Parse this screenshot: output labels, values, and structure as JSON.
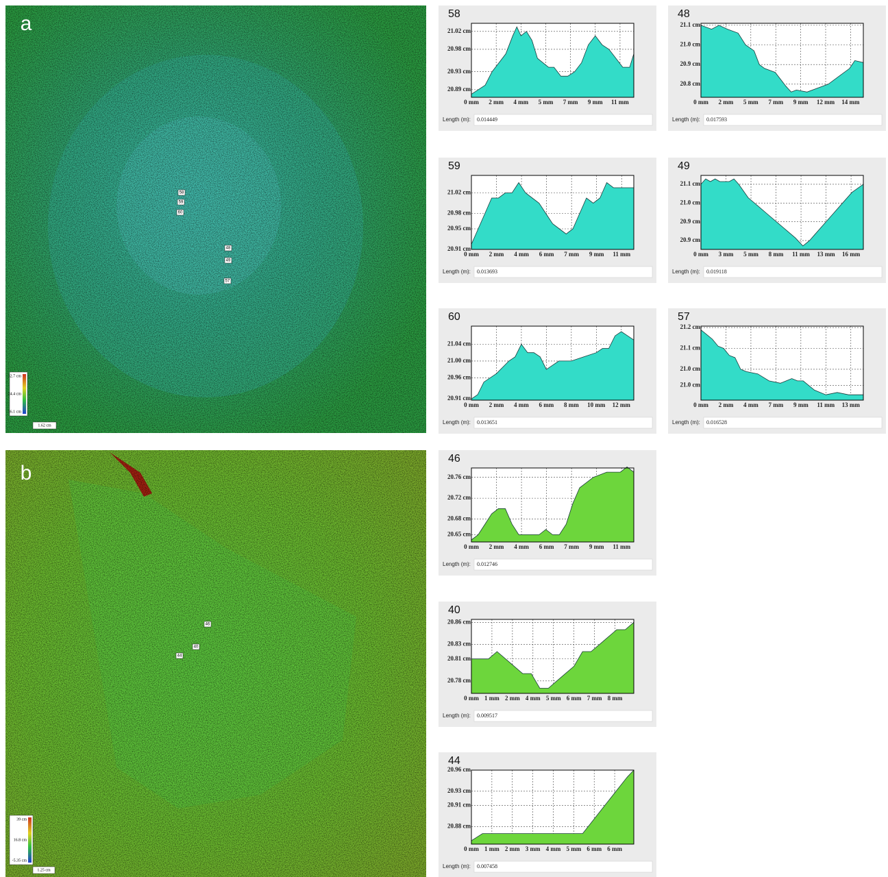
{
  "panels": [
    {
      "label": "a",
      "legend": [
        "32.7 cm",
        "24.4 cm",
        "16.1 cm"
      ],
      "scale": "1.62 cm",
      "markers": [
        "58",
        "59",
        "60",
        "48",
        "49",
        "57"
      ]
    },
    {
      "label": "b",
      "legend": [
        "39 cm",
        "16.8 cm",
        "-5.35 cm"
      ],
      "scale": "1.25 cm",
      "markers": [
        "46",
        "40",
        "44"
      ]
    }
  ],
  "chart_data": [
    {
      "type": "area",
      "title": "58",
      "color": "#33dcc8",
      "grid": true,
      "x": [
        0,
        0.5,
        1,
        1.5,
        2,
        2.5,
        3,
        3.3,
        3.6,
        4,
        4.4,
        4.8,
        5.2,
        5.6,
        6,
        6.5,
        7,
        7.5,
        8,
        8.5,
        9,
        9.5,
        10,
        10.5,
        11,
        11.5,
        11.8
      ],
      "values": [
        20.88,
        20.89,
        20.9,
        20.93,
        20.95,
        20.97,
        21.01,
        21.03,
        21.01,
        21.02,
        21.0,
        20.96,
        20.95,
        20.94,
        20.94,
        20.92,
        20.92,
        20.93,
        20.95,
        20.99,
        21.01,
        20.99,
        20.98,
        20.96,
        20.94,
        20.94,
        20.97
      ],
      "xlim": [
        0,
        11.8
      ],
      "xticks": [
        {
          "value": 0,
          "label": "0 mm"
        },
        {
          "value": 1.8,
          "label": "2 mm"
        },
        {
          "value": 3.6,
          "label": "4 mm"
        },
        {
          "value": 5.4,
          "label": "5 mm"
        },
        {
          "value": 7.2,
          "label": "7 mm"
        },
        {
          "value": 9.0,
          "label": "9 mm"
        },
        {
          "value": 10.8,
          "label": "11 mm"
        }
      ],
      "ylim": [
        20.873,
        21.038
      ],
      "yticks": [
        {
          "value": 20.89,
          "label": "20.89 cm"
        },
        {
          "value": 20.93,
          "label": "20.93 cm"
        },
        {
          "value": 20.98,
          "label": "20.98 cm"
        },
        {
          "value": 21.02,
          "label": "21.02 cm"
        }
      ],
      "length_label": "Length (m):",
      "length": 0.014449
    },
    {
      "type": "area",
      "title": "48",
      "color": "#33dcc8",
      "grid": true,
      "x": [
        0,
        1,
        1.7,
        2.5,
        3.5,
        4.2,
        5,
        5.5,
        6,
        7,
        8,
        8.5,
        9,
        10,
        11,
        12,
        13,
        14,
        14.5,
        15.3
      ],
      "values": [
        21.1,
        21.08,
        21.1,
        21.08,
        21.06,
        21.0,
        20.97,
        20.9,
        20.88,
        20.86,
        20.79,
        20.76,
        20.77,
        20.76,
        20.78,
        20.8,
        20.84,
        20.88,
        20.92,
        20.91
      ],
      "xlim": [
        0,
        15.3
      ],
      "xticks": [
        {
          "value": 0,
          "label": "0 mm"
        },
        {
          "value": 2.35,
          "label": "2 mm"
        },
        {
          "value": 4.7,
          "label": "5 mm"
        },
        {
          "value": 7.05,
          "label": "7 mm"
        },
        {
          "value": 9.4,
          "label": "9 mm"
        },
        {
          "value": 11.75,
          "label": "12 mm"
        },
        {
          "value": 14.1,
          "label": "14 mm"
        }
      ],
      "ylim": [
        20.733,
        21.11
      ],
      "yticks": [
        {
          "value": 20.8,
          "label": "20.8 cm"
        },
        {
          "value": 20.9,
          "label": "20.9 cm"
        },
        {
          "value": 21.0,
          "label": "21.0 cm"
        },
        {
          "value": 21.1,
          "label": "21.1 cm"
        }
      ],
      "length_label": "Length (m):",
      "length": 0.017593
    },
    {
      "type": "area",
      "title": "59",
      "color": "#33dcc8",
      "grid": true,
      "x": [
        0,
        0.5,
        1,
        1.5,
        2,
        2.5,
        3,
        3.5,
        4,
        4.5,
        5,
        5.5,
        6,
        6.5,
        7,
        7.5,
        8,
        8.5,
        9,
        9.5,
        10,
        10.5,
        11,
        12
      ],
      "values": [
        20.92,
        20.95,
        20.98,
        21.01,
        21.01,
        21.02,
        21.02,
        21.04,
        21.02,
        21.01,
        21.0,
        20.98,
        20.96,
        20.95,
        20.94,
        20.95,
        20.98,
        21.01,
        21.0,
        21.01,
        21.04,
        21.03,
        21.03,
        21.03
      ],
      "xlim": [
        0,
        12.0
      ],
      "xticks": [
        {
          "value": 0,
          "label": "0 mm"
        },
        {
          "value": 1.85,
          "label": "2 mm"
        },
        {
          "value": 3.7,
          "label": "4 mm"
        },
        {
          "value": 5.55,
          "label": "6 mm"
        },
        {
          "value": 7.4,
          "label": "7 mm"
        },
        {
          "value": 9.25,
          "label": "9 mm"
        },
        {
          "value": 11.1,
          "label": "11 mm"
        }
      ],
      "ylim": [
        20.91,
        21.054
      ],
      "yticks": [
        {
          "value": 20.91,
          "label": "20.91 cm"
        },
        {
          "value": 20.95,
          "label": "20.95 cm"
        },
        {
          "value": 20.98,
          "label": "20.98 cm"
        },
        {
          "value": 21.02,
          "label": "21.02 cm"
        }
      ],
      "length_label": "Length (m):",
      "length": 0.013693
    },
    {
      "type": "area",
      "title": "49",
      "color": "#33dcc8",
      "grid": true,
      "x": [
        0,
        0.5,
        1,
        1.5,
        2,
        3,
        3.5,
        4,
        5,
        6,
        7,
        8,
        9,
        10,
        10.8,
        11.5,
        12,
        13,
        14,
        15,
        16,
        17.2
      ],
      "values": [
        21.08,
        21.1,
        21.09,
        21.1,
        21.09,
        21.09,
        21.1,
        21.08,
        21.03,
        21.0,
        20.97,
        20.94,
        20.91,
        20.88,
        20.85,
        20.87,
        20.89,
        20.93,
        20.97,
        21.01,
        21.05,
        21.08
      ],
      "xlim": [
        0,
        17.2
      ],
      "xticks": [
        {
          "value": 0,
          "label": "0 mm"
        },
        {
          "value": 2.65,
          "label": "3 mm"
        },
        {
          "value": 5.3,
          "label": "5 mm"
        },
        {
          "value": 7.95,
          "label": "8 mm"
        },
        {
          "value": 10.6,
          "label": "11 mm"
        },
        {
          "value": 13.25,
          "label": "13 mm"
        },
        {
          "value": 15.9,
          "label": "16 mm"
        }
      ],
      "ylim": [
        20.837,
        21.113
      ],
      "yticks": [
        {
          "value": 20.87,
          "label": "20.9 cm"
        },
        {
          "value": 20.94,
          "label": "20.9 cm"
        },
        {
          "value": 21.01,
          "label": "21.0 cm"
        },
        {
          "value": 21.08,
          "label": "21.1 cm"
        }
      ],
      "length_label": "Length (m):",
      "length": 0.019118
    },
    {
      "type": "area",
      "title": "60",
      "color": "#33dcc8",
      "grid": true,
      "x": [
        0,
        0.5,
        1,
        2,
        3,
        3.5,
        4,
        4.5,
        5,
        5.5,
        6,
        6.5,
        7,
        7.5,
        8,
        9,
        10,
        10.5,
        11,
        11.5,
        12,
        12.5,
        13
      ],
      "values": [
        20.91,
        20.92,
        20.95,
        20.97,
        21.0,
        21.01,
        21.04,
        21.02,
        21.02,
        21.01,
        20.98,
        20.99,
        21.0,
        21.0,
        21.0,
        21.01,
        21.02,
        21.03,
        21.03,
        21.06,
        21.07,
        21.06,
        21.05
      ],
      "xlim": [
        0,
        13
      ],
      "xticks": [
        {
          "value": 0,
          "label": "0 mm"
        },
        {
          "value": 2,
          "label": "2 mm"
        },
        {
          "value": 4,
          "label": "4 mm"
        },
        {
          "value": 6,
          "label": "6 mm"
        },
        {
          "value": 8,
          "label": "8 mm"
        },
        {
          "value": 10,
          "label": "10 mm"
        },
        {
          "value": 12,
          "label": "12 mm"
        }
      ],
      "ylim": [
        20.907,
        21.083
      ],
      "yticks": [
        {
          "value": 20.91,
          "label": "20.91 cm"
        },
        {
          "value": 20.96,
          "label": "20.96 cm"
        },
        {
          "value": 21.0,
          "label": "21.00 cm"
        },
        {
          "value": 21.04,
          "label": "21.04 cm"
        }
      ],
      "length_label": "Length (m):",
      "length": 0.013651
    },
    {
      "type": "area",
      "title": "57",
      "color": "#33dcc8",
      "grid": true,
      "x": [
        0,
        0.5,
        1,
        1.5,
        2,
        2.5,
        3,
        3.5,
        4,
        5,
        6,
        7,
        8,
        8.5,
        9,
        10,
        11,
        12,
        13,
        14.3
      ],
      "values": [
        21.2,
        21.18,
        21.16,
        21.13,
        21.12,
        21.09,
        21.08,
        21.03,
        21.02,
        21.01,
        20.98,
        20.97,
        20.99,
        20.98,
        20.98,
        20.94,
        20.92,
        20.93,
        20.92,
        20.92
      ],
      "xlim": [
        0,
        14.3
      ],
      "xticks": [
        {
          "value": 0,
          "label": "0 mm"
        },
        {
          "value": 2.2,
          "label": "2 mm"
        },
        {
          "value": 4.4,
          "label": "4 mm"
        },
        {
          "value": 6.6,
          "label": "7 mm"
        },
        {
          "value": 8.8,
          "label": "9 mm"
        },
        {
          "value": 11.0,
          "label": "11 mm"
        },
        {
          "value": 13.2,
          "label": "13 mm"
        }
      ],
      "ylim": [
        20.897,
        21.216
      ],
      "yticks": [
        {
          "value": 20.96,
          "label": "21.0 cm"
        },
        {
          "value": 21.03,
          "label": "21.0 cm"
        },
        {
          "value": 21.12,
          "label": "21.1 cm"
        },
        {
          "value": 21.21,
          "label": "21.2 cm"
        }
      ],
      "length_label": "Length (m):",
      "length": 0.016528
    },
    {
      "type": "area",
      "title": "46",
      "color": "#6dd63c",
      "grid": true,
      "x": [
        0,
        0.5,
        1,
        1.5,
        2,
        2.5,
        3,
        3.5,
        4,
        5,
        5.5,
        6,
        6.5,
        7,
        7.5,
        8,
        8.5,
        9,
        10,
        11,
        11.5,
        12
      ],
      "values": [
        20.64,
        20.65,
        20.67,
        20.69,
        20.7,
        20.7,
        20.67,
        20.65,
        20.65,
        20.65,
        20.66,
        20.65,
        20.65,
        20.67,
        20.71,
        20.74,
        20.75,
        20.76,
        20.77,
        20.77,
        20.78,
        20.77
      ],
      "xlim": [
        0,
        12.0
      ],
      "xticks": [
        {
          "value": 0,
          "label": "0 mm"
        },
        {
          "value": 1.85,
          "label": "2 mm"
        },
        {
          "value": 3.7,
          "label": "4 mm"
        },
        {
          "value": 5.55,
          "label": "6 mm"
        },
        {
          "value": 7.4,
          "label": "7 mm"
        },
        {
          "value": 9.25,
          "label": "9 mm"
        },
        {
          "value": 11.1,
          "label": "11 mm"
        }
      ],
      "ylim": [
        20.636,
        20.778
      ],
      "yticks": [
        {
          "value": 20.65,
          "label": "20.65 cm"
        },
        {
          "value": 20.68,
          "label": "20.68 cm"
        },
        {
          "value": 20.72,
          "label": "20.72 cm"
        },
        {
          "value": 20.76,
          "label": "20.76 cm"
        }
      ],
      "length_label": "Length (m):",
      "length": 0.012746
    },
    {
      "type": "area",
      "title": "40",
      "color": "#6dd63c",
      "grid": true,
      "x": [
        0,
        0.5,
        1,
        1.5,
        2,
        2.5,
        3,
        3.5,
        4,
        4.5,
        5,
        5.5,
        6,
        6.5,
        7,
        7.5,
        8,
        8.5,
        9,
        9.5
      ],
      "values": [
        20.81,
        20.81,
        20.81,
        20.82,
        20.81,
        20.8,
        20.79,
        20.79,
        20.77,
        20.77,
        20.78,
        20.79,
        20.8,
        20.82,
        20.82,
        20.83,
        20.84,
        20.85,
        20.85,
        20.86
      ],
      "xlim": [
        0,
        9.5
      ],
      "xticks": [
        {
          "value": 0,
          "label": "0 mm"
        },
        {
          "value": 1.2,
          "label": "1 mm"
        },
        {
          "value": 2.4,
          "label": "2 mm"
        },
        {
          "value": 3.6,
          "label": "4 mm"
        },
        {
          "value": 4.8,
          "label": "5 mm"
        },
        {
          "value": 6.0,
          "label": "6 mm"
        },
        {
          "value": 7.2,
          "label": "7 mm"
        },
        {
          "value": 8.4,
          "label": "8 mm"
        }
      ],
      "ylim": [
        20.763,
        20.864
      ],
      "yticks": [
        {
          "value": 20.78,
          "label": "20.78 cm"
        },
        {
          "value": 20.81,
          "label": "20.81 cm"
        },
        {
          "value": 20.83,
          "label": "20.83 cm"
        },
        {
          "value": 20.86,
          "label": "20.86 cm"
        }
      ],
      "length_label": "Length (m):",
      "length": 0.009517
    },
    {
      "type": "area",
      "title": "44",
      "color": "#6dd63c",
      "grid": true,
      "x": [
        0,
        0.5,
        1,
        1.5,
        2,
        2.5,
        3,
        3.5,
        4,
        4.5,
        5,
        5.5,
        6,
        6.5,
        7,
        7.3
      ],
      "values": [
        20.86,
        20.87,
        20.87,
        20.87,
        20.87,
        20.87,
        20.87,
        20.87,
        20.87,
        20.87,
        20.87,
        20.89,
        20.91,
        20.93,
        20.95,
        20.96
      ],
      "xlim": [
        0,
        7.3
      ],
      "xticks": [
        {
          "value": 0,
          "label": "0 mm"
        },
        {
          "value": 0.92,
          "label": "1 mm"
        },
        {
          "value": 1.84,
          "label": "2 mm"
        },
        {
          "value": 2.76,
          "label": "3 mm"
        },
        {
          "value": 3.68,
          "label": "4 mm"
        },
        {
          "value": 4.6,
          "label": "5 mm"
        },
        {
          "value": 5.52,
          "label": "6 mm"
        },
        {
          "value": 6.44,
          "label": "6 mm"
        }
      ],
      "ylim": [
        20.855,
        20.96
      ],
      "yticks": [
        {
          "value": 20.88,
          "label": "20.88 cm"
        },
        {
          "value": 20.91,
          "label": "20.91 cm"
        },
        {
          "value": 20.93,
          "label": "20.93 cm"
        },
        {
          "value": 20.96,
          "label": "20.96 cm"
        }
      ],
      "length_label": "Length (m):",
      "length": 0.007458
    }
  ]
}
